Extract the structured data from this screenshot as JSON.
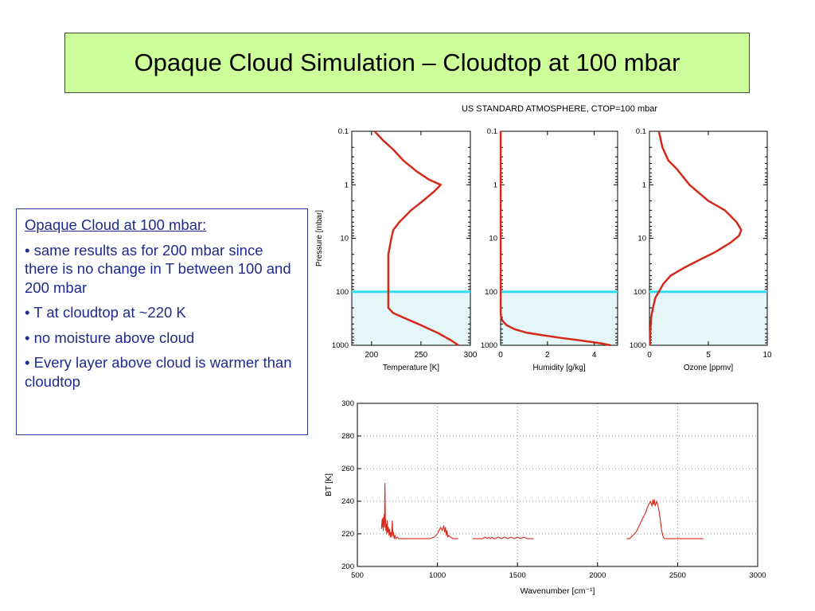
{
  "slide": {
    "title": "Opaque Cloud Simulation – Cloudtop at 100 mbar"
  },
  "notes": {
    "heading": "Opaque Cloud at 100 mbar:",
    "bullets": [
      "• same results as for 200 mbar since there is no change in T between 100 and 200 mbar",
      "• T at cloudtop at ~220 K",
      "• no moisture above cloud",
      "• Every layer above cloud is warmer than cloudtop"
    ]
  },
  "figure_title": "US STANDARD ATMOSPHERE, CTOP=100 mbar",
  "colors": {
    "curve": "#d42a1a",
    "cloud_line": "#33ddee",
    "cloud_fill": "#e4f6f8",
    "title_bg": "#ccff99",
    "notes_text": "#1f2a8c"
  },
  "chart_data": [
    {
      "type": "line",
      "xlabel": "Temperature [K]",
      "ylabel": "Pressure [mbar]",
      "xlim": [
        180,
        300
      ],
      "ylim": [
        0.1,
        1000
      ],
      "y_scale": "log",
      "y_inverted": true,
      "xticks": [
        200,
        250,
        300
      ],
      "yticks": [
        0.1,
        1,
        10,
        100,
        1000
      ],
      "cloud_top": 100,
      "x": [
        203,
        212,
        222,
        232,
        245,
        258,
        270,
        264,
        252,
        240,
        228,
        222,
        220,
        217,
        217,
        217,
        217,
        222,
        235,
        250,
        268,
        280,
        288
      ],
      "y": [
        0.1,
        0.15,
        0.22,
        0.35,
        0.55,
        0.8,
        1.0,
        1.3,
        2.0,
        3.0,
        5.0,
        7.0,
        10,
        20,
        50,
        100,
        200,
        250,
        320,
        420,
        600,
        800,
        1000
      ]
    },
    {
      "type": "line",
      "xlabel": "Humidity [g/kg]",
      "ylabel": "",
      "xlim": [
        0,
        5
      ],
      "ylim": [
        0.1,
        1000
      ],
      "y_scale": "log",
      "y_inverted": true,
      "xticks": [
        0,
        2,
        4
      ],
      "yticks": [
        0.1,
        1,
        10,
        100,
        1000
      ],
      "cloud_top": 100,
      "x": [
        0.003,
        0.003,
        0.003,
        0.003,
        0.003,
        0.005,
        0.02,
        0.08,
        0.25,
        0.6,
        1.1,
        1.8,
        2.6,
        3.5,
        4.3,
        4.7
      ],
      "y": [
        0.1,
        1,
        10,
        100,
        200,
        250,
        300,
        350,
        420,
        500,
        580,
        650,
        730,
        820,
        920,
        1000
      ]
    },
    {
      "type": "line",
      "xlabel": "Ozone [ppmv]",
      "ylabel": "",
      "xlim": [
        0,
        10
      ],
      "ylim": [
        0.1,
        1000
      ],
      "y_scale": "log",
      "y_inverted": true,
      "xticks": [
        0,
        5,
        10
      ],
      "yticks": [
        0.1,
        1,
        10,
        100,
        1000
      ],
      "cloud_top": 100,
      "x": [
        0.8,
        1.1,
        1.6,
        2.3,
        3.4,
        5.0,
        6.4,
        7.4,
        7.8,
        7.6,
        6.9,
        5.6,
        4.3,
        3.0,
        1.8,
        1.2,
        0.8,
        0.5,
        0.3,
        0.15,
        0.08,
        0.05
      ],
      "y": [
        0.1,
        0.2,
        0.35,
        0.5,
        1.0,
        2.0,
        3.0,
        5.0,
        7.0,
        9.0,
        12,
        18,
        25,
        35,
        50,
        70,
        100,
        130,
        200,
        300,
        500,
        1000
      ]
    },
    {
      "type": "line",
      "xlabel": "Wavenumber [cm⁻¹]",
      "ylabel": "BT [K]",
      "xlim": [
        500,
        3000
      ],
      "ylim": [
        200,
        300
      ],
      "xticks": [
        500,
        1000,
        1500,
        2000,
        2500,
        3000
      ],
      "yticks": [
        200,
        220,
        240,
        260,
        280,
        300
      ],
      "segments": [
        {
          "x": [
            650,
            655,
            658,
            660,
            662,
            664,
            666,
            668,
            670,
            672,
            675,
            678,
            681,
            684,
            687,
            690,
            694,
            698,
            702,
            706,
            710,
            714,
            718,
            722,
            726,
            730,
            735,
            740,
            750,
            760,
            780,
            800
          ],
          "y": [
            223,
            229,
            224,
            230,
            222,
            226,
            228,
            232,
            224,
            251,
            230,
            222,
            226,
            220,
            228,
            221,
            224,
            219,
            223,
            218,
            221,
            218,
            228,
            219,
            221,
            217,
            219,
            217,
            218,
            217,
            217,
            217
          ]
        },
        {
          "x": [
            800,
            850,
            900,
            950,
            980,
            1000,
            1010,
            1020,
            1030,
            1040,
            1045,
            1050,
            1055,
            1060,
            1065,
            1070,
            1080,
            1100,
            1130
          ],
          "y": [
            217,
            217,
            217,
            217,
            218,
            220,
            222,
            224,
            222,
            225,
            221,
            224,
            219,
            222,
            218,
            219,
            218,
            217,
            217
          ]
        },
        {
          "x": [
            1220,
            1250,
            1280,
            1300,
            1310,
            1320,
            1330,
            1340,
            1350,
            1360,
            1380,
            1400,
            1420,
            1440,
            1460,
            1480,
            1500,
            1520,
            1540,
            1560,
            1580,
            1600
          ],
          "y": [
            217,
            217,
            217,
            218,
            217,
            218,
            217,
            218,
            217,
            217,
            218,
            217,
            218,
            217,
            218,
            217,
            218,
            217,
            218,
            217,
            217,
            217
          ]
        },
        {
          "x": [
            2180,
            2200,
            2220,
            2240,
            2260,
            2280,
            2300,
            2310,
            2320,
            2330,
            2340,
            2345,
            2350,
            2355,
            2360,
            2370,
            2380,
            2390,
            2400,
            2410,
            2420,
            2450,
            2500,
            2550,
            2600,
            2660
          ],
          "y": [
            217,
            217,
            219,
            221,
            225,
            229,
            233,
            236,
            238,
            240,
            237,
            241,
            238,
            241,
            237,
            240,
            236,
            230,
            222,
            218,
            217,
            217,
            217,
            217,
            217,
            217
          ]
        }
      ]
    }
  ]
}
